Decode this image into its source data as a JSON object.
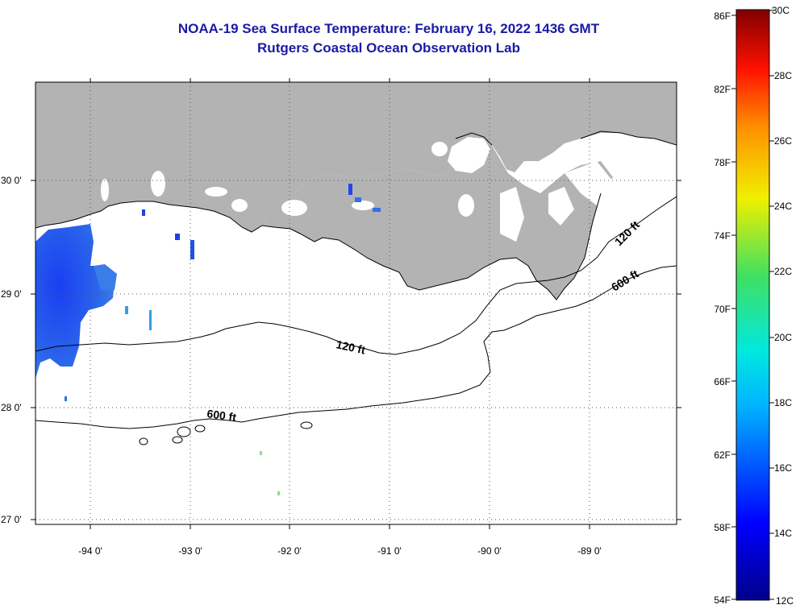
{
  "title": "NOAA-19 Sea Surface Temperature:  February 16, 2022 1436 GMT",
  "subtitle": "Rutgers Coastal Ocean Observation Lab",
  "map": {
    "lon_labels": [
      "-94 0'",
      "-93 0'",
      "-92 0'",
      "-91 0'",
      "-90 0'",
      "-89 0'"
    ],
    "lat_labels": [
      "30 0'",
      "29 0'",
      "28 0'",
      "27 0'"
    ],
    "contour_labels": [
      "120 ft",
      "120 ft",
      "600 ft",
      "600 ft"
    ],
    "colors": {
      "land": "#b3b3b3",
      "ocean_nodata": "#ffffff",
      "sst_cold": "#1f4fe8",
      "title": "#1a1aa6"
    }
  },
  "colorbar": {
    "f_labels": [
      "86F",
      "82F",
      "78F",
      "74F",
      "70F",
      "66F",
      "62F",
      "58F",
      "54F"
    ],
    "c_labels": [
      "30C",
      "28C",
      "26C",
      "24C",
      "22C",
      "20C",
      "18C",
      "16C",
      "14C",
      "12C"
    ],
    "range_c": [
      12,
      30
    ],
    "range_f": [
      54,
      86
    ]
  }
}
